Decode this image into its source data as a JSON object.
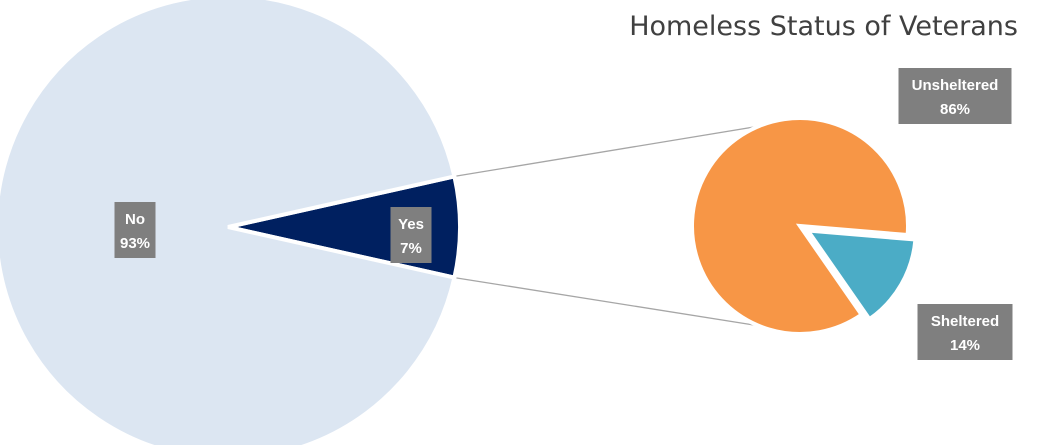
{
  "chart_data": {
    "type": "pie",
    "title": "Homeless Status of Veterans",
    "main": {
      "slices": [
        {
          "label": "No",
          "value": 93,
          "value_label": "93%",
          "color": "#dce6f2"
        },
        {
          "label": "Yes",
          "value": 7,
          "value_label": "7%",
          "color": "#002060"
        }
      ]
    },
    "breakdown_of": "Yes",
    "sub": {
      "slices": [
        {
          "label": "Unsheltered",
          "value": 86,
          "value_label": "86%",
          "color": "#f79646"
        },
        {
          "label": "Sheltered",
          "value": 14,
          "value_label": "14%",
          "color": "#4bacc6"
        }
      ]
    },
    "chart_variant": "pie-of-pie",
    "legend": "none"
  }
}
